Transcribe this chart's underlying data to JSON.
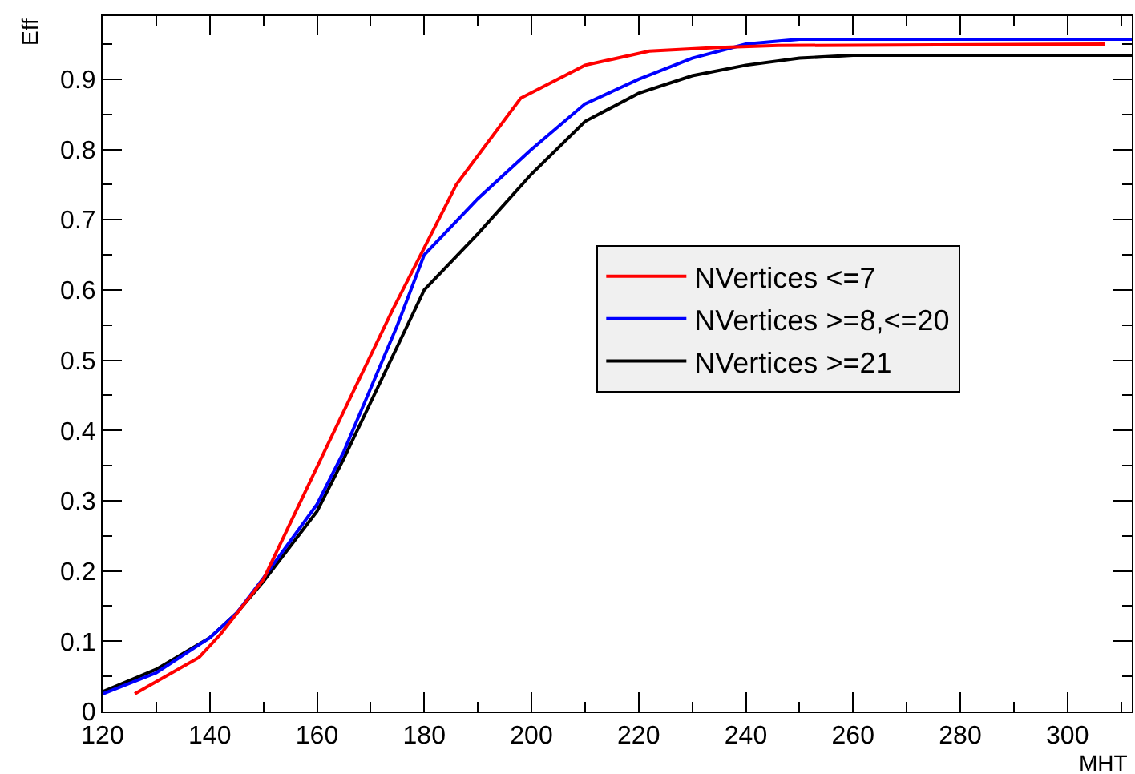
{
  "chart_data": {
    "type": "line",
    "xlabel": "MHT",
    "ylabel": "Eff",
    "xlim": [
      120,
      312
    ],
    "xticks": [
      120,
      140,
      160,
      180,
      200,
      220,
      240,
      260,
      280,
      300
    ],
    "ylim": [
      0,
      0.99
    ],
    "yticks": [
      0,
      0.1,
      0.2,
      0.3,
      0.4,
      0.5,
      0.6,
      0.7,
      0.8,
      0.9
    ],
    "grid": false,
    "legend": "right",
    "marker": "none",
    "line_style": "solid",
    "series": [
      {
        "name": "NVertices <=7",
        "color": "#ff0000",
        "x": [
          126,
          138,
          142,
          150,
          162,
          174,
          186,
          198,
          210,
          222,
          234,
          246,
          307
        ],
        "values": [
          0.025,
          0.077,
          0.11,
          0.188,
          0.38,
          0.57,
          0.75,
          0.873,
          0.92,
          0.94,
          0.945,
          0.948,
          0.95
        ]
      },
      {
        "name": "NVertices >=8,<=20",
        "color": "#0000ff",
        "x": [
          120,
          130,
          140,
          145,
          150,
          160,
          165,
          170,
          175,
          180,
          190,
          200,
          210,
          220,
          230,
          240,
          250,
          312
        ],
        "values": [
          0.025,
          0.055,
          0.105,
          0.14,
          0.19,
          0.295,
          0.37,
          0.46,
          0.55,
          0.65,
          0.73,
          0.8,
          0.865,
          0.9,
          0.93,
          0.95,
          0.957,
          0.957
        ]
      },
      {
        "name": "NVertices >=21",
        "color": "#000000",
        "x": [
          120,
          130,
          140,
          145,
          150,
          160,
          165,
          170,
          175,
          180,
          190,
          200,
          210,
          220,
          230,
          240,
          250,
          260,
          312
        ],
        "values": [
          0.028,
          0.06,
          0.105,
          0.14,
          0.185,
          0.285,
          0.36,
          0.44,
          0.52,
          0.6,
          0.68,
          0.765,
          0.84,
          0.88,
          0.905,
          0.92,
          0.93,
          0.934,
          0.934
        ]
      }
    ]
  }
}
